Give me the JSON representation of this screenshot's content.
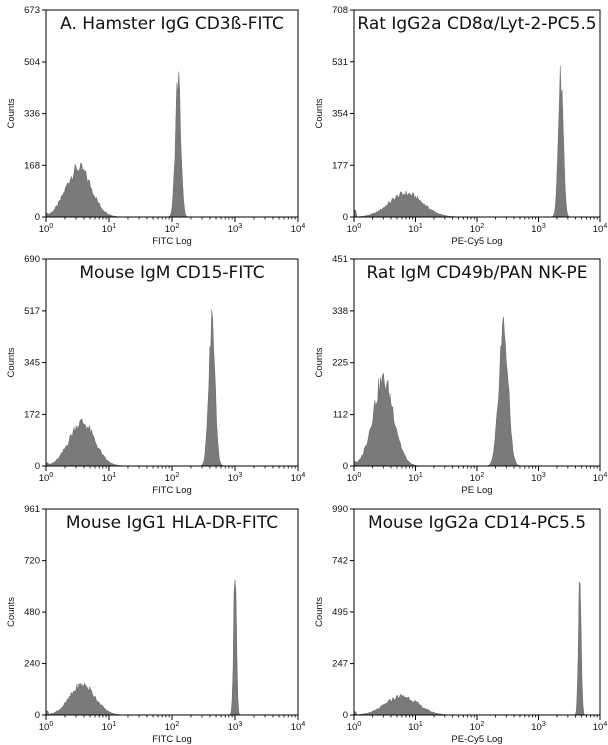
{
  "chart_data": [
    {
      "type": "area",
      "title": "A. Hamster IgG CD3ß-FITC",
      "xlabel": "FITC Log",
      "ylabel": "Counts",
      "xscale": "log",
      "xlim": [
        1,
        10000
      ],
      "ylim": [
        0,
        673
      ],
      "yticks": [
        0,
        168,
        336,
        504,
        673
      ],
      "xticks": [
        {
          "base": "10",
          "exp": "0"
        },
        {
          "base": "10",
          "exp": "1"
        },
        {
          "base": "10",
          "exp": "2"
        },
        {
          "base": "10",
          "exp": "3"
        },
        {
          "base": "10",
          "exp": "4"
        }
      ],
      "peaks": [
        {
          "center": 3.3,
          "height": 158,
          "width": 0.2
        },
        {
          "center": 125,
          "height": 450,
          "width": 0.042
        }
      ],
      "start_height": 12,
      "color": "#7a7a7a"
    },
    {
      "type": "area",
      "title": "Rat IgG2a CD8α/Lyt-2-PC5.5",
      "xlabel": "PE-Cy5 Log",
      "ylabel": "Counts",
      "xscale": "log",
      "xlim": [
        1,
        10000
      ],
      "ylim": [
        0,
        708
      ],
      "yticks": [
        0,
        177,
        354,
        531,
        708
      ],
      "xticks": [
        {
          "base": "10",
          "exp": "0"
        },
        {
          "base": "10",
          "exp": "1"
        },
        {
          "base": "10",
          "exp": "2"
        },
        {
          "base": "10",
          "exp": "3"
        },
        {
          "base": "10",
          "exp": "4"
        }
      ],
      "peaks": [
        {
          "center": 7,
          "height": 80,
          "width": 0.27
        },
        {
          "center": 2300,
          "height": 470,
          "width": 0.04
        }
      ],
      "start_height": 22,
      "color": "#7a7a7a"
    },
    {
      "type": "area",
      "title": "Mouse IgM CD15-FITC",
      "xlabel": "FITC Log",
      "ylabel": "Counts",
      "xscale": "log",
      "xlim": [
        1,
        10000
      ],
      "ylim": [
        0,
        690
      ],
      "yticks": [
        0,
        172,
        345,
        517,
        690
      ],
      "xticks": [
        {
          "base": "10",
          "exp": "0"
        },
        {
          "base": "10",
          "exp": "1"
        },
        {
          "base": "10",
          "exp": "2"
        },
        {
          "base": "10",
          "exp": "3"
        },
        {
          "base": "10",
          "exp": "4"
        }
      ],
      "peaks": [
        {
          "center": 3.7,
          "height": 145,
          "width": 0.2
        },
        {
          "center": 430,
          "height": 470,
          "width": 0.05
        }
      ],
      "start_height": 12,
      "color": "#7a7a7a"
    },
    {
      "type": "area",
      "title": "Rat IgM CD49b/PAN NK-PE",
      "xlabel": "PE Log",
      "ylabel": "Counts",
      "xscale": "log",
      "xlim": [
        1,
        10000
      ],
      "ylim": [
        0,
        451
      ],
      "yticks": [
        0,
        112,
        225,
        338,
        451
      ],
      "xticks": [
        {
          "base": "10",
          "exp": "0"
        },
        {
          "base": "10",
          "exp": "1"
        },
        {
          "base": "10",
          "exp": "2"
        },
        {
          "base": "10",
          "exp": "3"
        },
        {
          "base": "10",
          "exp": "4"
        }
      ],
      "peaks": [
        {
          "center": 3,
          "height": 185,
          "width": 0.17
        },
        {
          "center": 270,
          "height": 300,
          "width": 0.075
        }
      ],
      "start_height": 10,
      "color": "#7a7a7a"
    },
    {
      "type": "area",
      "title": "Mouse IgG1 HLA-DR-FITC",
      "xlabel": "FITC Log",
      "ylabel": "Counts",
      "xscale": "log",
      "xlim": [
        1,
        10000
      ],
      "ylim": [
        0,
        961
      ],
      "yticks": [
        0,
        240,
        480,
        720,
        961
      ],
      "xticks": [
        {
          "base": "10",
          "exp": "0"
        },
        {
          "base": "10",
          "exp": "1"
        },
        {
          "base": "10",
          "exp": "2"
        },
        {
          "base": "10",
          "exp": "3"
        },
        {
          "base": "10",
          "exp": "4"
        }
      ],
      "peaks": [
        {
          "center": 3.8,
          "height": 140,
          "width": 0.2
        },
        {
          "center": 1000,
          "height": 650,
          "width": 0.022
        }
      ],
      "start_height": 18,
      "color": "#7a7a7a"
    },
    {
      "type": "area",
      "title": "Mouse IgG2a CD14-PC5.5",
      "xlabel": "PE-Cy5 Log",
      "ylabel": "Counts",
      "xscale": "log",
      "xlim": [
        1,
        10000
      ],
      "ylim": [
        0,
        990
      ],
      "yticks": [
        0,
        247,
        495,
        742,
        990
      ],
      "xticks": [
        {
          "base": "10",
          "exp": "0"
        },
        {
          "base": "10",
          "exp": "1"
        },
        {
          "base": "10",
          "exp": "2"
        },
        {
          "base": "10",
          "exp": "3"
        },
        {
          "base": "10",
          "exp": "4"
        }
      ],
      "peaks": [
        {
          "center": 6,
          "height": 90,
          "width": 0.26
        },
        {
          "center": 4700,
          "height": 660,
          "width": 0.022
        }
      ],
      "start_height": 18,
      "color": "#7a7a7a"
    }
  ]
}
